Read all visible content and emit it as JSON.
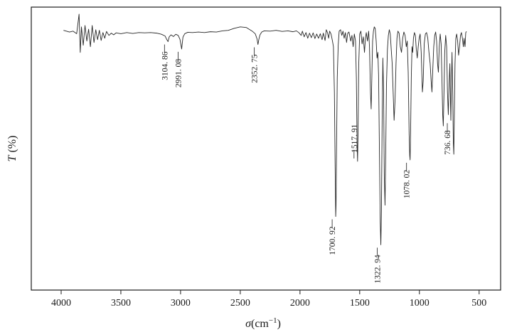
{
  "chart_data": {
    "type": "line",
    "xlabel_symbol": "σ",
    "xlabel_unit": "(cm",
    "xlabel_exp": "−1",
    "xlabel_close": ")",
    "ylabel_symbol": "T",
    "ylabel_unit": " (%)",
    "xlim": [
      4250,
      320
    ],
    "ylim": [
      0,
      100
    ],
    "x_ticks": [
      4000,
      3500,
      3000,
      2500,
      2000,
      1500,
      1000,
      500
    ],
    "x_tick_labels": [
      "4000",
      "3500",
      "3000",
      "2500",
      "2000",
      "1500",
      "1000",
      "500"
    ],
    "grid": false,
    "series": [
      {
        "points": [
          [
            3980,
            91.8
          ],
          [
            3930,
            91.2
          ],
          [
            3900,
            91.5
          ],
          [
            3870,
            90.6
          ],
          [
            3850,
            97.5
          ],
          [
            3840,
            84.0
          ],
          [
            3830,
            93.0
          ],
          [
            3815,
            86.5
          ],
          [
            3800,
            93.5
          ],
          [
            3785,
            88.0
          ],
          [
            3770,
            92.2
          ],
          [
            3755,
            86.0
          ],
          [
            3740,
            93.5
          ],
          [
            3725,
            87.5
          ],
          [
            3710,
            92.0
          ],
          [
            3695,
            88.5
          ],
          [
            3680,
            91.8
          ],
          [
            3665,
            88.2
          ],
          [
            3650,
            91.0
          ],
          [
            3635,
            89.0
          ],
          [
            3620,
            91.4
          ],
          [
            3600,
            90.0
          ],
          [
            3580,
            90.8
          ],
          [
            3560,
            90.2
          ],
          [
            3540,
            90.9
          ],
          [
            3500,
            90.6
          ],
          [
            3450,
            91.0
          ],
          [
            3400,
            90.7
          ],
          [
            3350,
            91.0
          ],
          [
            3300,
            90.9
          ],
          [
            3250,
            91.0
          ],
          [
            3200,
            90.8
          ],
          [
            3160,
            90.4
          ],
          [
            3130,
            89.8
          ],
          [
            3115,
            88.5
          ],
          [
            3105,
            87.8
          ],
          [
            3095,
            89.5
          ],
          [
            3080,
            90.2
          ],
          [
            3060,
            89.6
          ],
          [
            3040,
            90.4
          ],
          [
            3020,
            90.0
          ],
          [
            3005,
            88.6
          ],
          [
            2991,
            85.2
          ],
          [
            2980,
            89.4
          ],
          [
            2965,
            90.6
          ],
          [
            2940,
            91.1
          ],
          [
            2900,
            91.0
          ],
          [
            2850,
            91.2
          ],
          [
            2800,
            91.0
          ],
          [
            2750,
            91.3
          ],
          [
            2700,
            91.2
          ],
          [
            2650,
            91.6
          ],
          [
            2600,
            91.8
          ],
          [
            2550,
            92.5
          ],
          [
            2500,
            93.0
          ],
          [
            2450,
            92.8
          ],
          [
            2400,
            91.5
          ],
          [
            2375,
            90.6
          ],
          [
            2360,
            88.8
          ],
          [
            2352,
            86.8
          ],
          [
            2345,
            88.5
          ],
          [
            2335,
            90.2
          ],
          [
            2320,
            91.2
          ],
          [
            2300,
            91.6
          ],
          [
            2250,
            91.5
          ],
          [
            2200,
            91.8
          ],
          [
            2150,
            91.4
          ],
          [
            2100,
            91.6
          ],
          [
            2060,
            91.3
          ],
          [
            2030,
            91.6
          ],
          [
            2010,
            91.0
          ],
          [
            1990,
            90.0
          ],
          [
            1980,
            91.5
          ],
          [
            1965,
            89.5
          ],
          [
            1950,
            91.0
          ],
          [
            1935,
            89.0
          ],
          [
            1920,
            90.8
          ],
          [
            1905,
            89.2
          ],
          [
            1890,
            90.9
          ],
          [
            1875,
            88.9
          ],
          [
            1860,
            90.5
          ],
          [
            1845,
            89.0
          ],
          [
            1830,
            90.6
          ],
          [
            1815,
            88.5
          ],
          [
            1805,
            90.8
          ],
          [
            1790,
            88.2
          ],
          [
            1780,
            92.0
          ],
          [
            1770,
            91.0
          ],
          [
            1760,
            89.0
          ],
          [
            1752,
            91.5
          ],
          [
            1740,
            90.5
          ],
          [
            1728,
            88.0
          ],
          [
            1720,
            86.0
          ],
          [
            1712,
            70.0
          ],
          [
            1706,
            45.0
          ],
          [
            1702,
            30.0
          ],
          [
            1700.92,
            26.0
          ],
          [
            1698,
            30.0
          ],
          [
            1694,
            50.0
          ],
          [
            1688,
            75.0
          ],
          [
            1680,
            86.5
          ],
          [
            1672,
            91.5
          ],
          [
            1660,
            92.0
          ],
          [
            1650,
            90.0
          ],
          [
            1640,
            91.5
          ],
          [
            1630,
            89.0
          ],
          [
            1620,
            91.0
          ],
          [
            1610,
            87.5
          ],
          [
            1600,
            90.8
          ],
          [
            1590,
            91.2
          ],
          [
            1575,
            88.0
          ],
          [
            1565,
            90.0
          ],
          [
            1555,
            86.0
          ],
          [
            1545,
            90.5
          ],
          [
            1535,
            88.0
          ],
          [
            1528,
            75.0
          ],
          [
            1522,
            52.0
          ],
          [
            1517.91,
            45.5
          ],
          [
            1514,
            55.0
          ],
          [
            1508,
            80.0
          ],
          [
            1500,
            90.5
          ],
          [
            1490,
            91.5
          ],
          [
            1480,
            87.0
          ],
          [
            1470,
            89.5
          ],
          [
            1460,
            84.0
          ],
          [
            1452,
            89.0
          ],
          [
            1445,
            91.0
          ],
          [
            1435,
            88.0
          ],
          [
            1425,
            91.5
          ],
          [
            1418,
            86.0
          ],
          [
            1410,
            70.0
          ],
          [
            1404,
            64.0
          ],
          [
            1398,
            76.0
          ],
          [
            1392,
            88.0
          ],
          [
            1385,
            91.5
          ],
          [
            1378,
            93.0
          ],
          [
            1370,
            92.5
          ],
          [
            1362,
            88.0
          ],
          [
            1355,
            82.0
          ],
          [
            1348,
            84.0
          ],
          [
            1342,
            76.0
          ],
          [
            1335,
            50.0
          ],
          [
            1328,
            24.0
          ],
          [
            1322.94,
            16.0
          ],
          [
            1318,
            28.0
          ],
          [
            1312,
            60.0
          ],
          [
            1306,
            82.0
          ],
          [
            1300,
            70.0
          ],
          [
            1294,
            40.0
          ],
          [
            1288,
            30.0
          ],
          [
            1283,
            45.0
          ],
          [
            1276,
            72.0
          ],
          [
            1268,
            85.0
          ],
          [
            1260,
            90.0
          ],
          [
            1252,
            92.0
          ],
          [
            1244,
            90.5
          ],
          [
            1236,
            85.0
          ],
          [
            1228,
            80.0
          ],
          [
            1220,
            70.0
          ],
          [
            1212,
            60.0
          ],
          [
            1204,
            67.0
          ],
          [
            1196,
            80.0
          ],
          [
            1188,
            89.0
          ],
          [
            1180,
            91.5
          ],
          [
            1170,
            90.8
          ],
          [
            1160,
            86.0
          ],
          [
            1150,
            84.0
          ],
          [
            1140,
            89.0
          ],
          [
            1130,
            91.2
          ],
          [
            1120,
            90.0
          ],
          [
            1110,
            86.0
          ],
          [
            1102,
            88.0
          ],
          [
            1094,
            77.0
          ],
          [
            1086,
            55.0
          ],
          [
            1081,
            47.5
          ],
          [
            1078.02,
            46.0
          ],
          [
            1074,
            55.0
          ],
          [
            1068,
            75.0
          ],
          [
            1062,
            86.0
          ],
          [
            1056,
            84.0
          ],
          [
            1050,
            89.0
          ],
          [
            1042,
            91.0
          ],
          [
            1034,
            90.0
          ],
          [
            1026,
            85.0
          ],
          [
            1018,
            82.0
          ],
          [
            1010,
            86.0
          ],
          [
            1002,
            89.0
          ],
          [
            994,
            90.5
          ],
          [
            985,
            84.0
          ],
          [
            975,
            70.0
          ],
          [
            968,
            74.0
          ],
          [
            960,
            87.0
          ],
          [
            950,
            90.5
          ],
          [
            940,
            91.0
          ],
          [
            930,
            89.0
          ],
          [
            920,
            84.0
          ],
          [
            910,
            80.0
          ],
          [
            902,
            74.0
          ],
          [
            895,
            70.0
          ],
          [
            888,
            78.0
          ],
          [
            880,
            86.0
          ],
          [
            872,
            90.0
          ],
          [
            864,
            91.2
          ],
          [
            856,
            88.0
          ],
          [
            848,
            80.0
          ],
          [
            841,
            77.0
          ],
          [
            834,
            86.0
          ],
          [
            826,
            90.5
          ],
          [
            818,
            87.0
          ],
          [
            811,
            74.0
          ],
          [
            805,
            62.0
          ],
          [
            800,
            58.0
          ],
          [
            795,
            68.0
          ],
          [
            788,
            84.0
          ],
          [
            780,
            90.0
          ],
          [
            772,
            86.0
          ],
          [
            765,
            70.0
          ],
          [
            758,
            62.0
          ],
          [
            752,
            72.0
          ],
          [
            745,
            80.0
          ],
          [
            739,
            65.0
          ],
          [
            736.68,
            60.0
          ],
          [
            733,
            70.0
          ],
          [
            727,
            84.0
          ],
          [
            721,
            70.0
          ],
          [
            716,
            52.0
          ],
          [
            712,
            48.0
          ],
          [
            708,
            60.0
          ],
          [
            702,
            80.0
          ],
          [
            695,
            89.0
          ],
          [
            688,
            90.5
          ],
          [
            680,
            88.0
          ],
          [
            672,
            83.0
          ],
          [
            664,
            86.0
          ],
          [
            656,
            90.0
          ],
          [
            648,
            91.0
          ],
          [
            640,
            89.0
          ],
          [
            632,
            86.0
          ],
          [
            626,
            89.0
          ],
          [
            618,
            86.0
          ],
          [
            612,
            91.0
          ],
          [
            606,
            91.4
          ]
        ]
      }
    ],
    "peaks": [
      {
        "x": 3104.86,
        "y": 87.8,
        "label": "3104. 86",
        "side": "below"
      },
      {
        "x": 2991.08,
        "y": 85.2,
        "label": "2991. 08",
        "side": "below"
      },
      {
        "x": 2352.75,
        "y": 86.8,
        "label": "2352. 75",
        "side": "below"
      },
      {
        "x": 1700.92,
        "y": 26.0,
        "label": "1700. 92",
        "side": "below"
      },
      {
        "x": 1517.91,
        "y": 45.5,
        "label": "1517. 91",
        "side": "above"
      },
      {
        "x": 1322.94,
        "y": 16.0,
        "label": "1322. 94",
        "side": "below"
      },
      {
        "x": 1078.02,
        "y": 46.0,
        "label": "1078. 02",
        "side": "below"
      },
      {
        "x": 736.68,
        "y": 60.0,
        "label": "736. 68",
        "side": "below"
      }
    ]
  }
}
